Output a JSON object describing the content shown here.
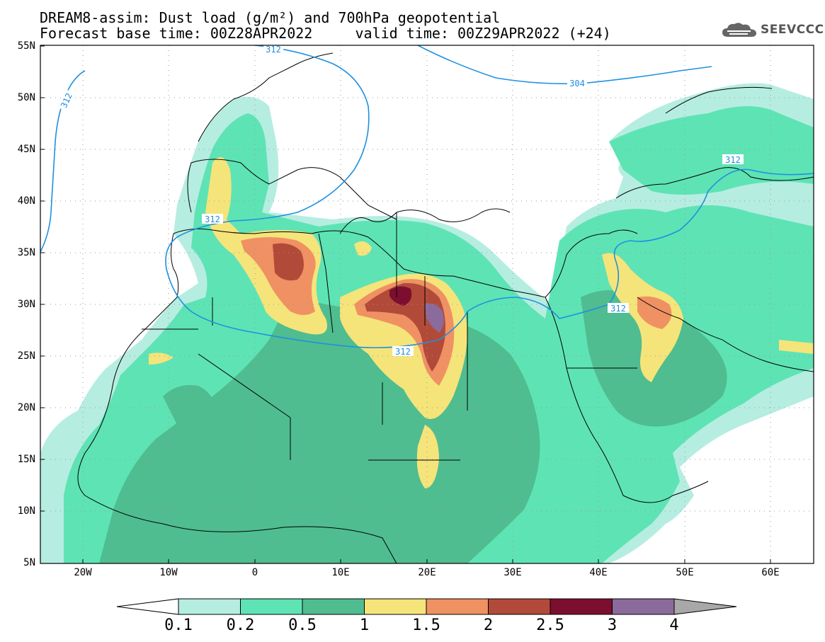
{
  "header": {
    "title_line1": "DREAM8-assim: Dust load (g/m²) and 700hPa geopotential",
    "title_line2": "Forecast base time: 00Z28APR2022     valid time: 00Z29APR2022 (+24)"
  },
  "logo": {
    "text": "SEEVCCC",
    "icon": "cloud-icon"
  },
  "axes": {
    "lat_labels": [
      "55N",
      "50N",
      "45N",
      "40N",
      "35N",
      "30N",
      "25N",
      "20N",
      "15N",
      "10N",
      "5N"
    ],
    "lon_labels": [
      "20W",
      "10W",
      "0",
      "10E",
      "20E",
      "30E",
      "40E",
      "50E",
      "60E"
    ]
  },
  "contours": {
    "labels": [
      "312",
      "304",
      "312",
      "312",
      "312",
      "312",
      "312"
    ],
    "color": "#1e90e0"
  },
  "colorbar": {
    "labels": [
      "0.1",
      "0.2",
      "0.5",
      "1",
      "1.5",
      "2",
      "2.5",
      "3",
      "4"
    ],
    "colors": [
      "#ffffff",
      "#b6ede1",
      "#5ee3b5",
      "#4fbd8f",
      "#f5e47a",
      "#ef9163",
      "#b24a39",
      "#7c0f30",
      "#8b6a9c",
      "#a8a8a8"
    ]
  },
  "dust_colors": {
    "c01": "#b6ede1",
    "c02": "#5ee3b5",
    "c05": "#4fbd8f",
    "c1": "#f5e47a",
    "c15": "#ef9163",
    "c2": "#b24a39",
    "c25": "#7c0f30",
    "c3": "#8b6a9c"
  }
}
